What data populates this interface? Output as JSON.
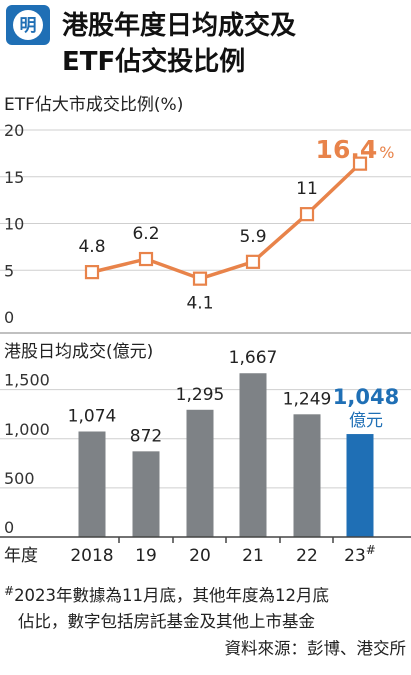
{
  "header": {
    "logo_char": "明",
    "title_line1": "港股年度日均成交及",
    "title_line2": "ETF佔交投比例"
  },
  "colors": {
    "line": "#E8834A",
    "bar": "#7E8286",
    "highlight_bar": "#1F6FB5",
    "logo_bg": "#1F6FB5",
    "grid": "#cfcfcf"
  },
  "chart_data": [
    {
      "type": "line",
      "title": "ETF佔大市成交比例(%)",
      "categories": [
        "2018",
        "19",
        "20",
        "21",
        "22",
        "23#"
      ],
      "values": [
        4.8,
        6.2,
        4.1,
        5.9,
        11,
        16.4
      ],
      "data_labels": [
        "4.8",
        "6.2",
        "4.1",
        "5.9",
        "11",
        "16.4"
      ],
      "highlight_label": "16.4",
      "highlight_unit": "%",
      "ylim": [
        0,
        20
      ],
      "yticks": [
        "0",
        "5",
        "10",
        "15",
        "20"
      ],
      "grid": true
    },
    {
      "type": "bar",
      "title": "港股日均成交(億元)",
      "categories": [
        "2018",
        "19",
        "20",
        "21",
        "22",
        "23#"
      ],
      "values": [
        1074,
        872,
        1295,
        1667,
        1249,
        1048
      ],
      "data_labels": [
        "1,074",
        "872",
        "1,295",
        "1,667",
        "1,249",
        "1,048"
      ],
      "highlight_unit": "億元",
      "ylim": [
        0,
        1700
      ],
      "yticks": [
        "0",
        "500",
        "1,000",
        "1,500"
      ],
      "grid": true
    }
  ],
  "axis": {
    "year_label": "年度",
    "categories_display": [
      "2018",
      "19",
      "20",
      "21",
      "22",
      "23"
    ],
    "last_sup": "#"
  },
  "footnote": {
    "mark": "#",
    "line1": "2023年數據為11月底，其他年度為12月底",
    "line2": "佔比，數字包括房託基金及其他上市基金",
    "source": "資料來源：彭博、港交所"
  }
}
